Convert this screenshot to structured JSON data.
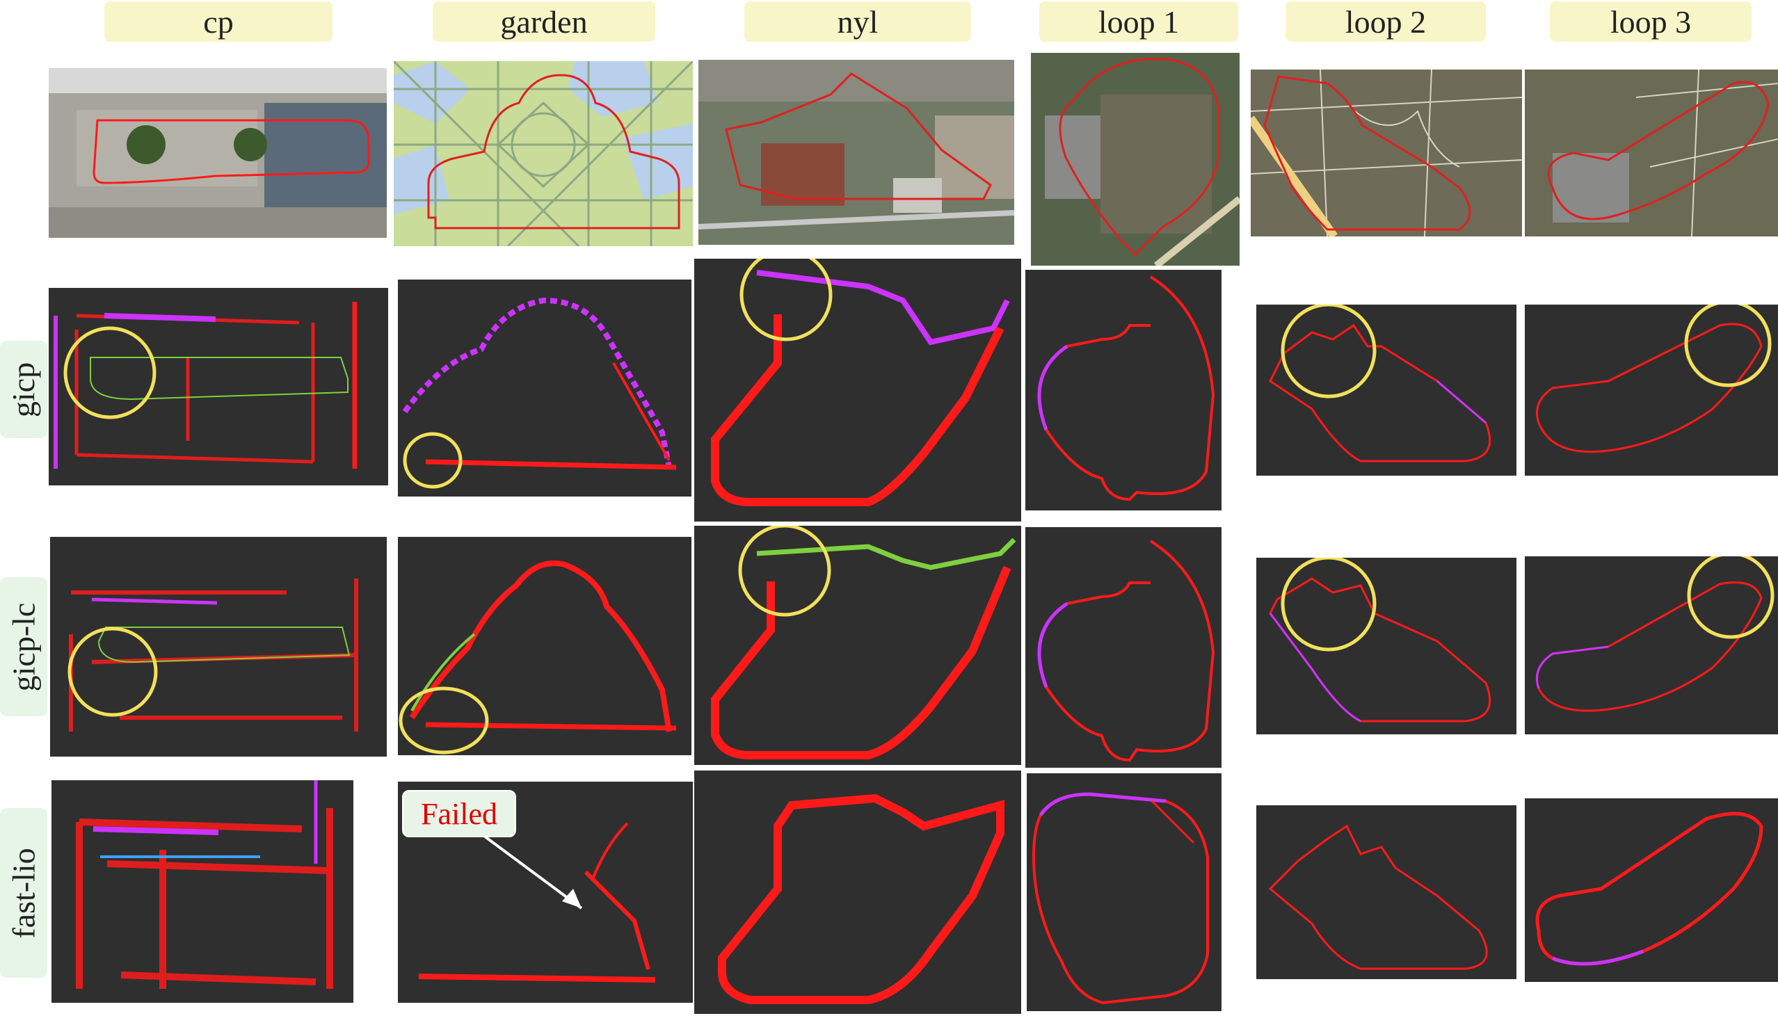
{
  "columns": [
    "cp",
    "garden",
    "nyl",
    "loop 1",
    "loop 2",
    "loop 3"
  ],
  "rows": [
    "gicp",
    "gicp-lc",
    "fast-lio"
  ],
  "annotation": {
    "text": "Failed"
  },
  "colors": {
    "panel_bg": "#2f2f2f",
    "trajectory": "#ff1a1a",
    "highlight_circle": "#f2e15a",
    "column_label_bg": "#f8f6c8",
    "row_label_bg": "#e6f5e6",
    "failed_text": "#e00000"
  }
}
